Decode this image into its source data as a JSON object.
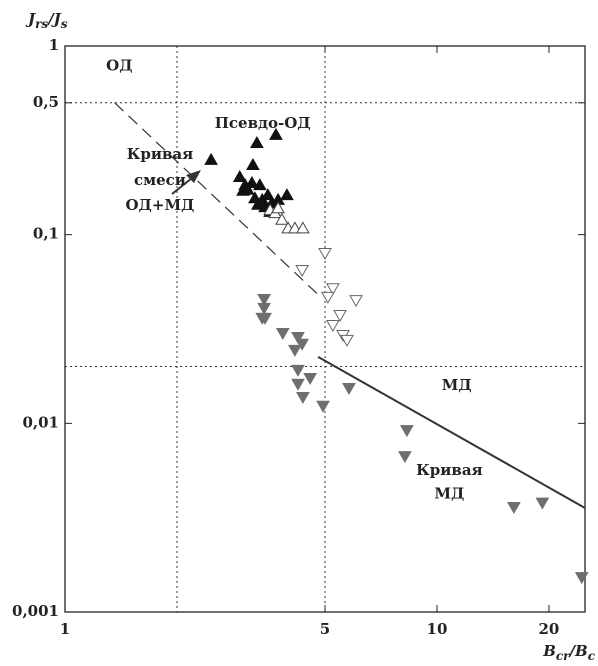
{
  "chart_data": {
    "type": "scatter",
    "y_label": [
      "J",
      "rs",
      "/J",
      "s"
    ],
    "x_label": [
      "B",
      "cr",
      "/B",
      "c"
    ],
    "x_log": true,
    "y_log": true,
    "xlim": [
      1,
      25
    ],
    "ylim": [
      0.001,
      1
    ],
    "xticks": [
      1,
      5,
      10,
      20
    ],
    "yticks": [
      1,
      {
        "value": 0.5,
        "label": "0,5"
      },
      {
        "value": 0.1,
        "label": "0,1"
      },
      {
        "value": 0.01,
        "label": "0,01"
      },
      {
        "value": 0.001,
        "label": "0,001"
      }
    ],
    "reference_lines": {
      "x": [
        2,
        5
      ],
      "y": [
        0.5,
        0.02
      ]
    },
    "curves": [
      {
        "name": "mixing",
        "style": "dashed",
        "x": [
          1.36,
          4.91
        ],
        "y": [
          0.5,
          0.046
        ]
      },
      {
        "name": "md",
        "style": "solid",
        "x": [
          4.79,
          25
        ],
        "y": [
          0.0225,
          0.00356
        ]
      }
    ],
    "annotations": [
      {
        "text": "ОД",
        "x": 1.4,
        "y": 0.78
      },
      {
        "text": "Псевдо-ОД",
        "x": 3.4,
        "y": 0.385
      },
      {
        "text": "Кривая",
        "x": 1.8,
        "y": 0.265
      },
      {
        "text": "смеси",
        "x": 1.8,
        "y": 0.193
      },
      {
        "text": "ОД+МД",
        "x": 1.8,
        "y": 0.142
      },
      {
        "text": "МД",
        "x": 11.3,
        "y": 0.0158
      },
      {
        "text": "Кривая",
        "x": 10.8,
        "y": 0.0056
      },
      {
        "text": "МД",
        "x": 10.8,
        "y": 0.0042
      }
    ],
    "series": [
      {
        "symbol": "triangle-up",
        "color": "#111",
        "fill": "#111",
        "x": [
          2.47,
          3.28,
          3.69,
          3.2,
          2.95,
          3.05,
          3.1,
          3.18,
          3.34,
          3.01,
          3.24,
          3.39,
          3.51,
          3.3,
          3.45,
          3.6,
          3.74,
          3.95,
          3.56
        ],
        "y": [
          0.249,
          0.306,
          0.338,
          0.234,
          0.202,
          0.183,
          0.173,
          0.188,
          0.183,
          0.171,
          0.156,
          0.153,
          0.162,
          0.144,
          0.14,
          0.147,
          0.153,
          0.162,
          0.132
        ]
      },
      {
        "symbol": "triangle-up",
        "color": "#444",
        "fill": "none",
        "x": [
          3.56,
          3.67,
          3.83,
          3.98,
          4.15,
          4.36,
          3.74
        ],
        "y": [
          0.135,
          0.13,
          0.12,
          0.108,
          0.108,
          0.108,
          0.138
        ]
      },
      {
        "symbol": "triangle-down",
        "color": "#666",
        "fill": "none",
        "x": [
          5.0,
          5.25,
          4.34,
          5.49,
          6.06,
          5.25,
          5.59,
          5.73,
          5.09
        ],
        "y": [
          0.08,
          0.052,
          0.065,
          0.0375,
          0.045,
          0.0332,
          0.0294,
          0.0277,
          0.0468
        ]
      },
      {
        "symbol": "triangle-down",
        "color": "#6e6e6e",
        "fill": "#6e6e6e",
        "x": [
          3.43,
          3.43,
          3.39,
          3.45,
          3.85,
          4.23,
          4.34,
          4.15,
          4.23,
          4.56,
          4.23,
          4.36,
          4.94,
          5.8,
          8.2,
          8.3,
          16.1,
          19.2,
          24.5
        ],
        "y": [
          0.0456,
          0.0409,
          0.0362,
          0.0362,
          0.0301,
          0.0287,
          0.0264,
          0.0245,
          0.0192,
          0.0174,
          0.0162,
          0.0138,
          0.0124,
          0.0154,
          0.0067,
          0.0092,
          0.0036,
          0.0038,
          0.00153
        ]
      }
    ]
  }
}
